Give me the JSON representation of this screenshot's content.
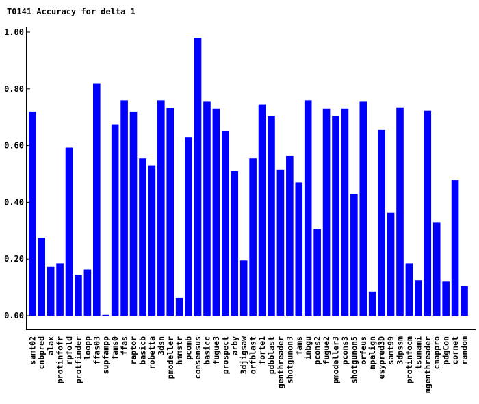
{
  "chart_data": {
    "type": "bar",
    "title": "T0141 Accuracy for delta 1",
    "xlabel": "",
    "ylabel": "",
    "ylim": [
      0,
      1
    ],
    "yticks": [
      "0.00",
      "0.20",
      "0.40",
      "0.60",
      "0.80",
      "1.00"
    ],
    "grid": false,
    "bar_color": "#0000ff",
    "categories": [
      "samt02",
      "cnbpred",
      "alax",
      "protinfofr",
      "rpfold",
      "protfinder",
      "loopp",
      "ffas03",
      "supfampp",
      "fams0",
      "ffas",
      "raptor",
      "basicb",
      "robetta",
      "3dsn",
      "pmodeller",
      "hmmstr",
      "pcomb",
      "consensus",
      "basicc",
      "fugue3",
      "prospect",
      "arby",
      "3djigsaw",
      "orfblast",
      "forte1",
      "pdbblast",
      "genthreader",
      "shotgunon3",
      "fams",
      "inbgu",
      "pcons2",
      "fugue2",
      "pmodeller3",
      "pcons3",
      "shotgunon5",
      "orfeus",
      "mpalign",
      "esypred3D",
      "samt99",
      "3dpssm",
      "protinfocm",
      "tsunami",
      "mgenthreader",
      "cmappro",
      "pdgCon",
      "cornet",
      "random"
    ],
    "values": [
      0.72,
      0.275,
      0.172,
      0.185,
      0.593,
      0.145,
      0.163,
      0.82,
      0.003,
      0.675,
      0.76,
      0.72,
      0.555,
      0.53,
      0.76,
      0.733,
      0.063,
      0.63,
      0.98,
      0.755,
      0.73,
      0.65,
      0.51,
      0.195,
      0.555,
      0.745,
      0.705,
      0.515,
      0.563,
      0.47,
      0.76,
      0.305,
      0.73,
      0.705,
      0.73,
      0.43,
      0.755,
      0.085,
      0.655,
      0.363,
      0.735,
      0.185,
      0.125,
      0.723,
      0.33,
      0.12,
      0.478,
      0.105
    ]
  }
}
